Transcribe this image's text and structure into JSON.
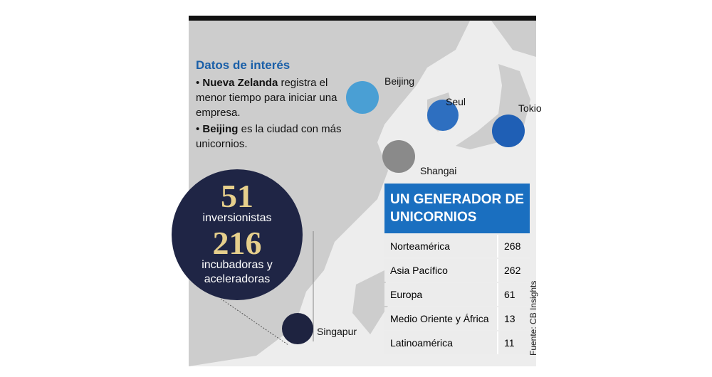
{
  "info": {
    "title": "Datos de interés",
    "bullets": [
      {
        "bold": "Nueva Zelanda",
        "text": "registra el menor tiempo para iniciar una empresa."
      },
      {
        "bold": "Beijing",
        "text": "es la ciudad con más unicornios."
      }
    ]
  },
  "cities": [
    "Beijing",
    "Seul",
    "Tokio",
    "Shangai",
    "Singapur"
  ],
  "stats": [
    {
      "value": "51",
      "label": "inversionistas"
    },
    {
      "value": "216",
      "label": "incubadoras y aceleradoras"
    }
  ],
  "table": {
    "title": "UN GENERADOR DE UNICORNIOS",
    "rows": [
      [
        "Norteamérica",
        268
      ],
      [
        "Asia Pacífico",
        262
      ],
      [
        "Europa",
        61
      ],
      [
        "Medio Oriente y África",
        13
      ],
      [
        "Latinoamérica",
        11
      ]
    ]
  },
  "source": "Fuente: CB Insights"
}
